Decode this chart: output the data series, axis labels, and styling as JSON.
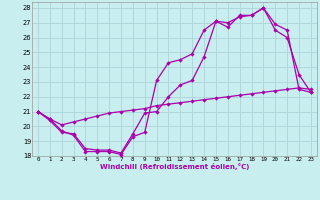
{
  "xlabel": "Windchill (Refroidissement éolien,°C)",
  "bg_color": "#c8eef0",
  "grid_color": "#b0d8dc",
  "line_color": "#aa00aa",
  "xlim": [
    -0.5,
    23.5
  ],
  "ylim": [
    18,
    28.4
  ],
  "xticks": [
    0,
    1,
    2,
    3,
    4,
    5,
    6,
    7,
    8,
    9,
    10,
    11,
    12,
    13,
    14,
    15,
    16,
    17,
    18,
    19,
    20,
    21,
    22,
    23
  ],
  "yticks": [
    18,
    19,
    20,
    21,
    22,
    23,
    24,
    25,
    26,
    27,
    28
  ],
  "line1_x": [
    0,
    1,
    2,
    3,
    4,
    5,
    6,
    7,
    8,
    9,
    10,
    11,
    12,
    13,
    14,
    15,
    16,
    17,
    18,
    19,
    20,
    21,
    22,
    23
  ],
  "line1_y": [
    21.0,
    20.5,
    19.7,
    19.4,
    18.3,
    18.3,
    18.3,
    18.1,
    19.3,
    19.6,
    23.1,
    24.3,
    24.5,
    24.9,
    26.5,
    27.1,
    26.7,
    27.5,
    27.5,
    28.0,
    26.5,
    26.0,
    23.5,
    22.3
  ],
  "line2_x": [
    0,
    1,
    2,
    3,
    4,
    5,
    6,
    7,
    8,
    9,
    10,
    11,
    12,
    13,
    14,
    15,
    16,
    17,
    18,
    19,
    20,
    21,
    22,
    23
  ],
  "line2_y": [
    21.0,
    20.4,
    19.6,
    19.5,
    18.5,
    18.4,
    18.4,
    18.2,
    19.5,
    20.9,
    21.0,
    22.0,
    22.8,
    23.1,
    24.7,
    27.1,
    27.0,
    27.4,
    27.5,
    28.0,
    26.9,
    26.5,
    22.5,
    22.3
  ],
  "line3_x": [
    0,
    1,
    2,
    3,
    4,
    5,
    6,
    7,
    8,
    9,
    10,
    11,
    12,
    13,
    14,
    15,
    16,
    17,
    18,
    19,
    20,
    21,
    22,
    23
  ],
  "line3_y": [
    21.0,
    20.5,
    20.1,
    20.3,
    20.5,
    20.7,
    20.9,
    21.0,
    21.1,
    21.2,
    21.4,
    21.5,
    21.6,
    21.7,
    21.8,
    21.9,
    22.0,
    22.1,
    22.2,
    22.3,
    22.4,
    22.5,
    22.6,
    22.5
  ]
}
